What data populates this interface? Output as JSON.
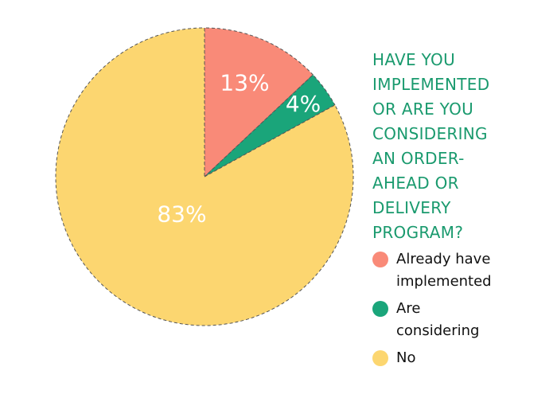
{
  "chart_data": {
    "type": "pie",
    "title": "HAVE YOU IMPLEMENTED OR ARE YOU CONSIDERING AN ORDER-AHEAD OR DELIVERY PROGRAM?",
    "categories": [
      "Already have implemented",
      "Are considering",
      "No"
    ],
    "values": [
      13,
      4,
      83
    ],
    "value_labels": [
      "13%",
      "4%",
      "83%"
    ],
    "colors": [
      "#f98a78",
      "#1aa57a",
      "#fcd670"
    ]
  }
}
